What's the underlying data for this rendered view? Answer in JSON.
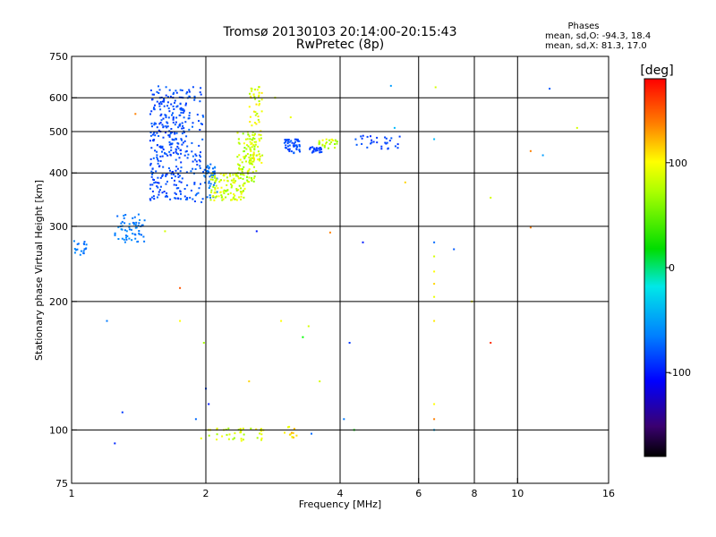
{
  "chart_data": {
    "type": "scatter",
    "title": "Tromsø 20130103 20:14:00-20:15:43",
    "subtitle": "RwPretec (8p)",
    "legend_box": {
      "heading": "Phases",
      "line1": "mean, sd,O: -94.3, 18.4",
      "line2": "mean, sd,X:  81.3, 17.0"
    },
    "xlabel": "Frequency [MHz]",
    "ylabel": "Stationary phase Virtual Height [km]",
    "x_scale": "log",
    "y_scale": "log",
    "xlim": [
      1,
      16
    ],
    "ylim": [
      75,
      750
    ],
    "xticks": [
      1,
      2,
      4,
      6,
      8,
      10,
      16
    ],
    "xtick_labels": [
      "1",
      "2",
      "4",
      "6",
      "8",
      "10",
      "16"
    ],
    "xgrid": [
      2,
      4,
      6,
      8,
      10
    ],
    "yticks": [
      75,
      100,
      200,
      300,
      400,
      500,
      600,
      750
    ],
    "ytick_labels": [
      "75",
      "100",
      "200",
      "300",
      "400",
      "500",
      "600",
      "750"
    ],
    "ygrid": [
      100,
      200,
      300,
      400,
      500,
      600
    ],
    "grid": true,
    "colorbar": {
      "label": "[deg]",
      "range": [
        -180,
        180
      ],
      "ticks": [
        100,
        0,
        -100
      ],
      "tick_labels": [
        "100",
        "0",
        "-100"
      ]
    },
    "clusters": [
      {
        "f": [
          1.0,
          1.08
        ],
        "h": [
          255,
          280
        ],
        "phase": -80,
        "n": 20
      },
      {
        "f": [
          1.25,
          1.46
        ],
        "h": [
          275,
          320
        ],
        "phase": -80,
        "n": 60
      },
      {
        "f": [
          1.5,
          1.78
        ],
        "h": [
          345,
          640
        ],
        "phase": -110,
        "n": 280
      },
      {
        "f": [
          1.78,
          1.98
        ],
        "h": [
          340,
          640
        ],
        "phase": -105,
        "n": 90
      },
      {
        "f": [
          1.98,
          2.12
        ],
        "h": [
          350,
          420
        ],
        "phase": -85,
        "n": 40
      },
      {
        "f": [
          2.05,
          2.45
        ],
        "h": [
          345,
          400
        ],
        "phase": 110,
        "n": 110
      },
      {
        "f": [
          2.35,
          2.6
        ],
        "h": [
          380,
          500
        ],
        "phase": 105,
        "n": 100
      },
      {
        "f": [
          2.5,
          2.68
        ],
        "h": [
          420,
          640
        ],
        "phase": 112,
        "n": 70
      },
      {
        "f": [
          3.0,
          3.25
        ],
        "h": [
          445,
          480
        ],
        "phase": -110,
        "n": 50
      },
      {
        "f": [
          3.4,
          3.65
        ],
        "h": [
          445,
          460
        ],
        "phase": -115,
        "n": 25
      },
      {
        "f": [
          3.55,
          3.95
        ],
        "h": [
          455,
          480
        ],
        "phase": 105,
        "n": 25
      },
      {
        "f": [
          4.3,
          5.5
        ],
        "h": [
          455,
          490
        ],
        "phase": -115,
        "n": 30
      },
      {
        "f": [
          1.95,
          2.7
        ],
        "h": [
          94,
          101
        ],
        "phase": 110,
        "n": 40
      },
      {
        "f": [
          3.0,
          3.2
        ],
        "h": [
          96,
          102
        ],
        "phase": 130,
        "n": 12
      }
    ],
    "points": [
      {
        "x": 1.39,
        "y": 550,
        "phase": 150
      },
      {
        "x": 1.2,
        "y": 180,
        "phase": -80
      },
      {
        "x": 1.3,
        "y": 110,
        "phase": -120
      },
      {
        "x": 1.25,
        "y": 93,
        "phase": -130
      },
      {
        "x": 1.75,
        "y": 215,
        "phase": 160
      },
      {
        "x": 1.75,
        "y": 180,
        "phase": 120
      },
      {
        "x": 1.62,
        "y": 292,
        "phase": 110
      },
      {
        "x": 2.0,
        "y": 125,
        "phase": -110
      },
      {
        "x": 1.98,
        "y": 160,
        "phase": 100
      },
      {
        "x": 2.03,
        "y": 115,
        "phase": -140
      },
      {
        "x": 1.9,
        "y": 106,
        "phase": -90
      },
      {
        "x": 2.5,
        "y": 130,
        "phase": 130
      },
      {
        "x": 2.6,
        "y": 292,
        "phase": -140
      },
      {
        "x": 2.86,
        "y": 600,
        "phase": 110
      },
      {
        "x": 3.1,
        "y": 540,
        "phase": 115
      },
      {
        "x": 3.3,
        "y": 165,
        "phase": 60
      },
      {
        "x": 3.4,
        "y": 175,
        "phase": 110
      },
      {
        "x": 3.6,
        "y": 130,
        "phase": 110
      },
      {
        "x": 3.8,
        "y": 290,
        "phase": 150
      },
      {
        "x": 3.45,
        "y": 98,
        "phase": -90
      },
      {
        "x": 2.95,
        "y": 180,
        "phase": 120
      },
      {
        "x": 4.2,
        "y": 160,
        "phase": -120
      },
      {
        "x": 4.3,
        "y": 100,
        "phase": 60
      },
      {
        "x": 4.08,
        "y": 106,
        "phase": -80
      },
      {
        "x": 4.5,
        "y": 275,
        "phase": -140
      },
      {
        "x": 5.2,
        "y": 640,
        "phase": -60
      },
      {
        "x": 5.3,
        "y": 510,
        "phase": -40
      },
      {
        "x": 5.6,
        "y": 380,
        "phase": 130
      },
      {
        "x": 6.5,
        "y": 480,
        "phase": -40
      },
      {
        "x": 6.55,
        "y": 635,
        "phase": 110
      },
      {
        "x": 6.5,
        "y": 275,
        "phase": -90
      },
      {
        "x": 6.5,
        "y": 255,
        "phase": 110
      },
      {
        "x": 6.5,
        "y": 235,
        "phase": 120
      },
      {
        "x": 6.5,
        "y": 220,
        "phase": 130
      },
      {
        "x": 6.5,
        "y": 205,
        "phase": 115
      },
      {
        "x": 6.5,
        "y": 180,
        "phase": 125
      },
      {
        "x": 6.5,
        "y": 115,
        "phase": 120
      },
      {
        "x": 6.5,
        "y": 106,
        "phase": 150
      },
      {
        "x": 6.5,
        "y": 100,
        "phase": -50
      },
      {
        "x": 7.2,
        "y": 265,
        "phase": -100
      },
      {
        "x": 7.9,
        "y": 200,
        "phase": 120
      },
      {
        "x": 8.7,
        "y": 350,
        "phase": 110
      },
      {
        "x": 8.7,
        "y": 160,
        "phase": 170
      },
      {
        "x": 10.7,
        "y": 450,
        "phase": 150
      },
      {
        "x": 10.7,
        "y": 298,
        "phase": 150
      },
      {
        "x": 11.4,
        "y": 440,
        "phase": -60
      },
      {
        "x": 11.8,
        "y": 630,
        "phase": -100
      },
      {
        "x": 13.6,
        "y": 510,
        "phase": 110
      }
    ]
  }
}
